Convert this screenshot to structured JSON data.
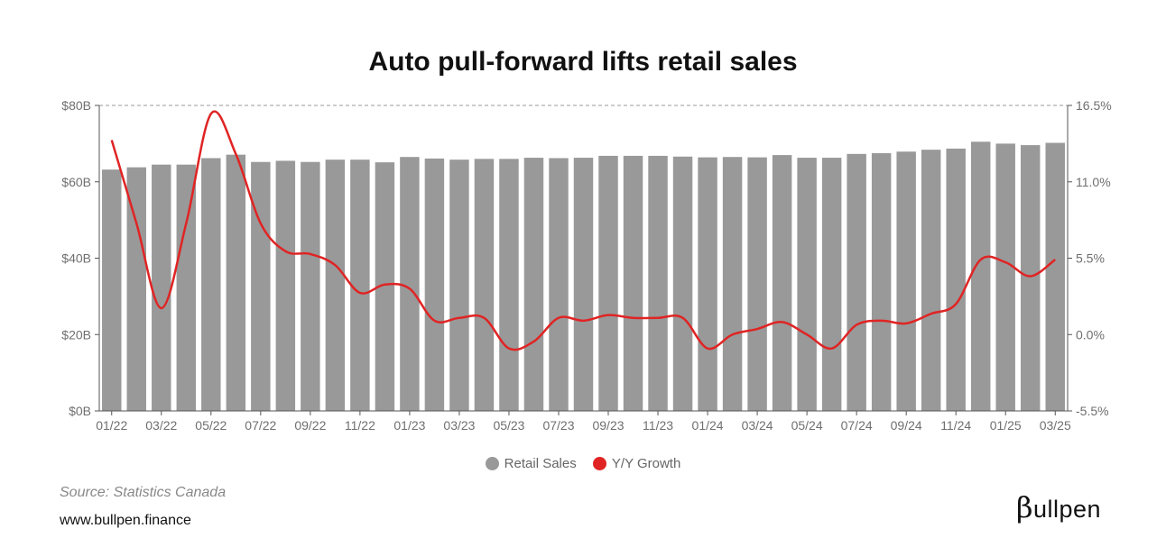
{
  "title": "Auto pull-forward lifts retail sales",
  "source": "Source: Statistics Canada",
  "website": "www.bullpen.finance",
  "logo": {
    "beta": "β",
    "text": "ullpen"
  },
  "legend": [
    {
      "name": "Retail Sales",
      "color": "#999999"
    },
    {
      "name": "Y/Y Growth",
      "color": "#e02424"
    }
  ],
  "chart_data": {
    "type": "bar",
    "categories": [
      "01/22",
      "02/22",
      "03/22",
      "04/22",
      "05/22",
      "06/22",
      "07/22",
      "08/22",
      "09/22",
      "10/22",
      "11/22",
      "12/22",
      "01/23",
      "02/23",
      "03/23",
      "04/23",
      "05/23",
      "06/23",
      "07/23",
      "08/23",
      "09/23",
      "10/23",
      "11/23",
      "12/23",
      "01/24",
      "02/24",
      "03/24",
      "04/24",
      "05/24",
      "06/24",
      "07/24",
      "08/24",
      "09/24",
      "10/24",
      "11/24",
      "12/24",
      "01/25",
      "02/25",
      "03/25"
    ],
    "x_tick_labels": [
      "01/22",
      "03/22",
      "05/22",
      "07/22",
      "09/22",
      "11/22",
      "01/23",
      "03/23",
      "05/23",
      "07/23",
      "09/23",
      "11/23",
      "01/24",
      "03/24",
      "05/24",
      "07/24",
      "09/24",
      "11/24",
      "01/25",
      "03/25"
    ],
    "series": [
      {
        "name": "Retail Sales",
        "type": "bar",
        "axis": "left",
        "color": "#999999",
        "values": [
          63.2,
          63.8,
          64.5,
          64.5,
          66.2,
          67.1,
          65.2,
          65.5,
          65.2,
          65.8,
          65.8,
          65.1,
          66.5,
          66.1,
          65.8,
          66.0,
          66.0,
          66.3,
          66.2,
          66.3,
          66.8,
          66.8,
          66.8,
          66.6,
          66.4,
          66.5,
          66.4,
          67.0,
          66.3,
          66.3,
          67.3,
          67.5,
          67.9,
          68.4,
          68.7,
          70.5,
          70.0,
          69.6,
          70.2
        ]
      },
      {
        "name": "Y/Y Growth",
        "type": "line",
        "axis": "right",
        "color": "#e02424",
        "values": [
          14.0,
          8.0,
          1.9,
          8.0,
          15.9,
          13.0,
          8.0,
          6.0,
          5.8,
          5.0,
          3.0,
          3.6,
          3.3,
          1.0,
          1.2,
          1.2,
          -1.0,
          -0.5,
          1.2,
          1.0,
          1.4,
          1.2,
          1.2,
          1.2,
          -1.0,
          0.0,
          0.4,
          0.9,
          0.0,
          -1.0,
          0.7,
          1.0,
          0.8,
          1.5,
          2.2,
          5.4,
          5.2,
          4.2,
          5.4
        ]
      }
    ],
    "y_left": {
      "ticks": [
        "$0B",
        "$20B",
        "$40B",
        "$60B",
        "$80B"
      ],
      "range": [
        0,
        80
      ]
    },
    "y_right": {
      "ticks": [
        "-5.5%",
        "0.0%",
        "5.5%",
        "11.0%",
        "16.5%"
      ],
      "range": [
        -5.5,
        16.5
      ]
    },
    "grid": false,
    "legend_position": "bottom-center"
  }
}
